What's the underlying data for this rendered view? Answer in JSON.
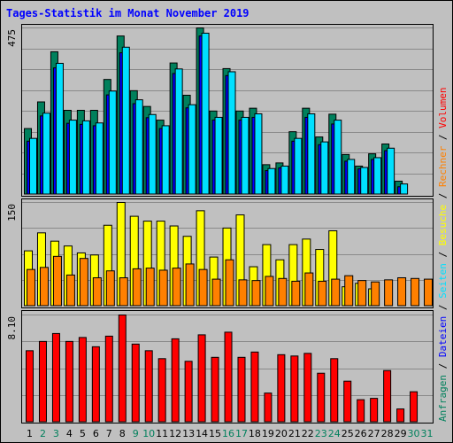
{
  "chart_data": {
    "type": "bar",
    "title": "Tages-Statistik im Monat November 2019",
    "categories": [
      "1",
      "2",
      "3",
      "4",
      "5",
      "6",
      "7",
      "8",
      "9",
      "10",
      "11",
      "12",
      "13",
      "14",
      "15",
      "16",
      "17",
      "18",
      "19",
      "20",
      "21",
      "22",
      "23",
      "24",
      "25",
      "26",
      "27",
      "28",
      "29",
      "30",
      "31"
    ],
    "weekend_days": [
      "2",
      "3",
      "9",
      "10",
      "16",
      "17",
      "23",
      "24",
      "30",
      "31"
    ],
    "legend": [
      {
        "text": "Anfragen",
        "color": "#00805c"
      },
      {
        "text": " / ",
        "color": "#000000"
      },
      {
        "text": "Dateien",
        "color": "#0000ff"
      },
      {
        "text": " / ",
        "color": "#000000"
      },
      {
        "text": "Seiten",
        "color": "#00e0ff"
      },
      {
        "text": " / ",
        "color": "#000000"
      },
      {
        "text": "Besuche",
        "color": "#ffff00"
      },
      {
        "text": " / ",
        "color": "#000000"
      },
      {
        "text": "Rechner",
        "color": "#ff8000"
      },
      {
        "text": " / ",
        "color": "#000000"
      },
      {
        "text": "Volumen",
        "color": "#ff0000"
      }
    ],
    "panels": [
      {
        "max_label": "475",
        "max": 475,
        "series": [
          {
            "name": "Anfragen",
            "color": "#00805c",
            "values": [
              188,
              264,
              407,
              240,
              240,
              240,
              328,
              452,
              296,
              251,
              212,
              375,
              283,
              475,
              238,
              359,
              238,
              246,
              85,
              90,
              179,
              246,
              164,
              229,
              114,
              81,
              116,
              144,
              38,
              0,
              0
            ]
          },
          {
            "name": "Dateien",
            "color": "#0000ff",
            "values": [
              152,
              224,
              361,
              203,
              200,
              196,
              284,
              404,
              259,
              219,
              188,
              345,
              247,
              452,
              212,
              339,
              212,
              220,
              68,
              76,
              152,
              220,
              142,
              201,
              95,
              73,
              100,
              125,
              22,
              0,
              0
            ]
          },
          {
            "name": "Seiten",
            "color": "#00e0ff",
            "values": [
              160,
              232,
              374,
              212,
              210,
              204,
              295,
              420,
              270,
              228,
              196,
              358,
              256,
              460,
              220,
              350,
              220,
              230,
              74,
              81,
              160,
              230,
              150,
              212,
              100,
              77,
              105,
              132,
              30,
              0,
              0
            ]
          }
        ]
      },
      {
        "max_label": "150",
        "max": 150,
        "series": [
          {
            "name": "Besuche",
            "color": "#ffff00",
            "values": [
              80,
              106,
              94,
              87,
              77,
              74,
              117,
              150,
              130,
              123,
              123,
              116,
              101,
              138,
              71,
              113,
              132,
              57,
              89,
              67,
              89,
              97,
              82,
              109,
              28,
              33,
              25,
              0,
              0,
              0,
              0
            ]
          },
          {
            "name": "Rechner",
            "color": "#ff8000",
            "values": [
              53,
              56,
              72,
              45,
              69,
              41,
              51,
              41,
              54,
              55,
              52,
              55,
              61,
              53,
              39,
              67,
              38,
              37,
              43,
              40,
              36,
              48,
              36,
              39,
              44,
              37,
              35,
              38,
              41,
              40,
              39
            ]
          }
        ]
      },
      {
        "max_label": "8.10",
        "max": 8.1,
        "series": [
          {
            "name": "Volumen",
            "color": "#ff0000",
            "values": [
              5.4,
              6.1,
              6.7,
              6.1,
              6.4,
              5.7,
              6.5,
              8.1,
              5.9,
              5.4,
              4.8,
              6.3,
              4.6,
              6.6,
              4.9,
              6.8,
              4.9,
              5.3,
              2.2,
              5.1,
              5.0,
              5.2,
              3.7,
              4.8,
              3.1,
              1.7,
              1.8,
              3.9,
              1.0,
              2.3,
              0
            ]
          }
        ]
      }
    ]
  }
}
